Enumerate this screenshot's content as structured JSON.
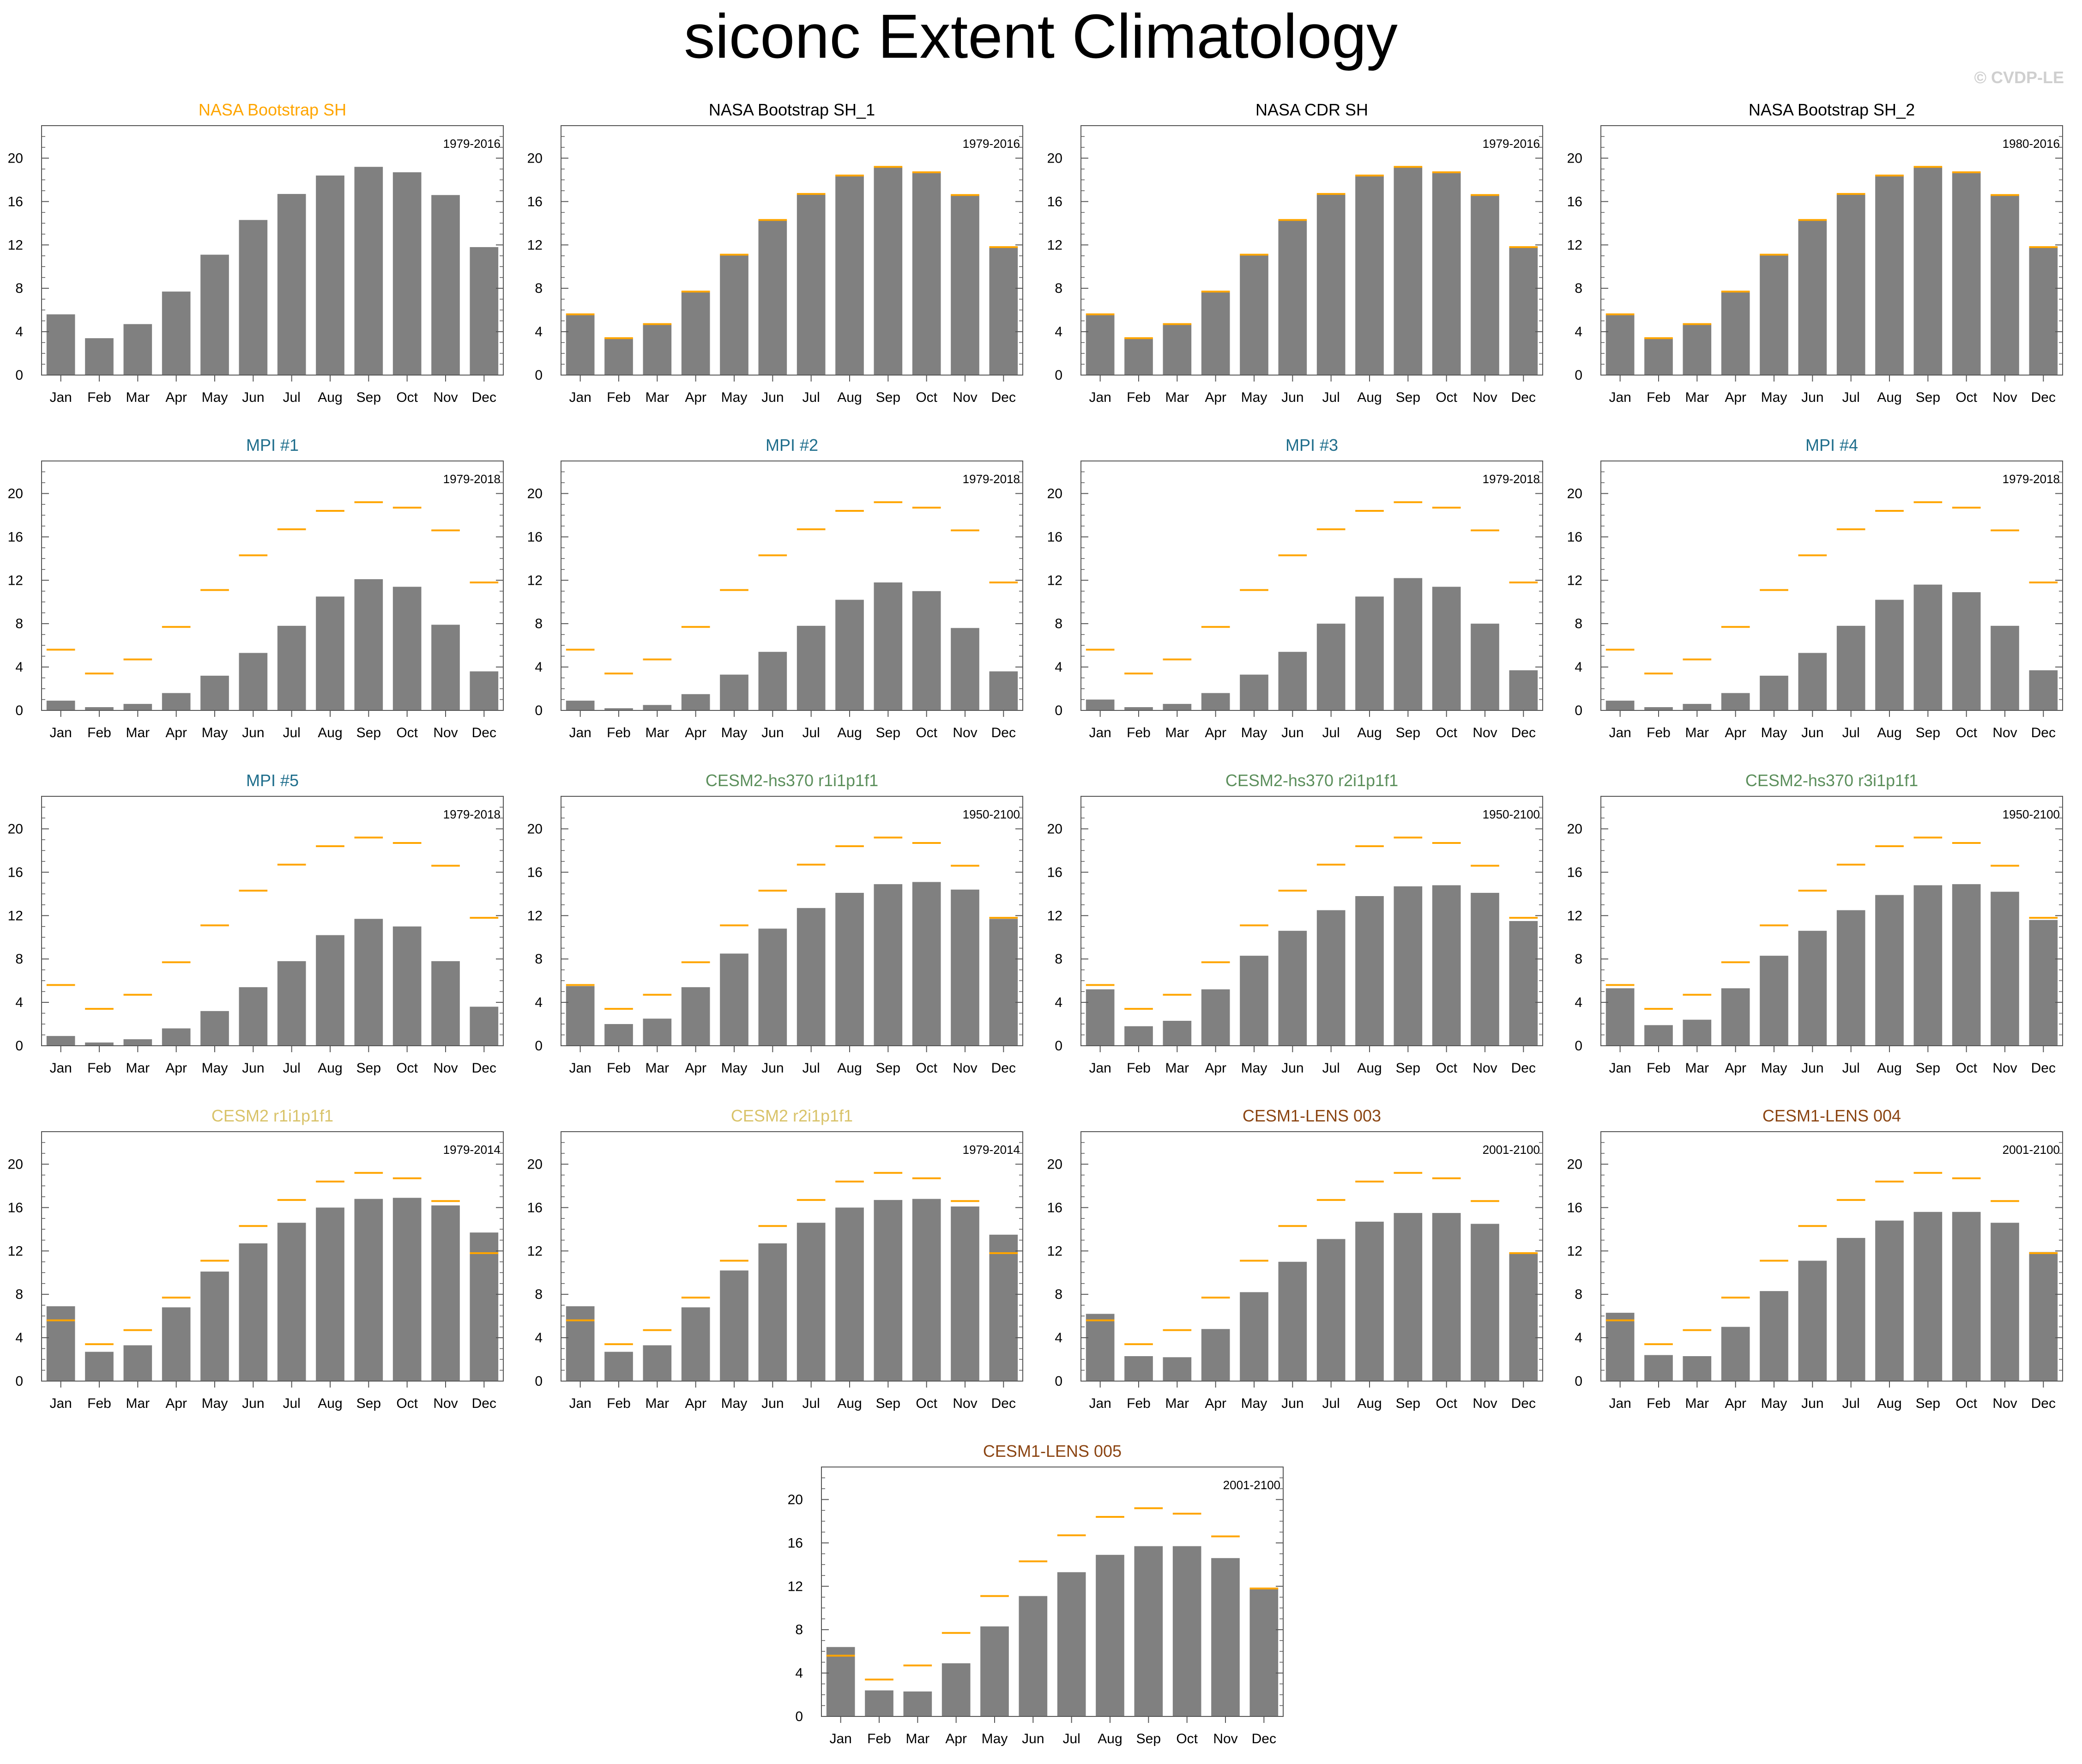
{
  "title": "siconc Extent Climatology",
  "watermark": "© CVDP-LE",
  "colors": {
    "bar": "#808080",
    "obs_line": "#FFA500",
    "title_obs": "#FFA500",
    "title_black": "#000000",
    "title_mpi": "#1F6E8C",
    "title_cesm2hs": "#5C8F5C",
    "title_cesm2": "#D9C36A",
    "title_lens": "#8B4513"
  },
  "chart_data": [
    {
      "type": "bar",
      "title": "NASA Bootstrap SH",
      "title_color": "#FFA500",
      "period": "1979-2016",
      "categories": [
        "Jan",
        "Feb",
        "Mar",
        "Apr",
        "May",
        "Jun",
        "Jul",
        "Aug",
        "Sep",
        "Oct",
        "Nov",
        "Dec"
      ],
      "values": [
        5.6,
        3.4,
        4.7,
        7.7,
        11.1,
        14.3,
        16.7,
        18.4,
        19.2,
        18.7,
        16.6,
        11.8
      ],
      "ylim": [
        0,
        23
      ],
      "yticks": [
        0,
        4,
        8,
        12,
        16,
        20
      ],
      "obs_reference": false
    },
    {
      "type": "bar",
      "title": "NASA Bootstrap SH_1",
      "title_color": "#000000",
      "period": "1979-2016",
      "categories": [
        "Jan",
        "Feb",
        "Mar",
        "Apr",
        "May",
        "Jun",
        "Jul",
        "Aug",
        "Sep",
        "Oct",
        "Nov",
        "Dec"
      ],
      "values": [
        5.6,
        3.4,
        4.7,
        7.7,
        11.1,
        14.3,
        16.7,
        18.4,
        19.2,
        18.7,
        16.6,
        11.8
      ],
      "ylim": [
        0,
        23
      ],
      "yticks": [
        0,
        4,
        8,
        12,
        16,
        20
      ],
      "obs_reference": true
    },
    {
      "type": "bar",
      "title": "NASA CDR SH",
      "title_color": "#000000",
      "period": "1979-2016",
      "categories": [
        "Jan",
        "Feb",
        "Mar",
        "Apr",
        "May",
        "Jun",
        "Jul",
        "Aug",
        "Sep",
        "Oct",
        "Nov",
        "Dec"
      ],
      "values": [
        5.6,
        3.4,
        4.7,
        7.7,
        11.1,
        14.3,
        16.7,
        18.4,
        19.2,
        18.7,
        16.6,
        11.8
      ],
      "ylim": [
        0,
        23
      ],
      "yticks": [
        0,
        4,
        8,
        12,
        16,
        20
      ],
      "obs_reference": true
    },
    {
      "type": "bar",
      "title": "NASA Bootstrap SH_2",
      "title_color": "#000000",
      "period": "1980-2016",
      "categories": [
        "Jan",
        "Feb",
        "Mar",
        "Apr",
        "May",
        "Jun",
        "Jul",
        "Aug",
        "Sep",
        "Oct",
        "Nov",
        "Dec"
      ],
      "values": [
        5.6,
        3.4,
        4.7,
        7.7,
        11.1,
        14.3,
        16.7,
        18.4,
        19.2,
        18.7,
        16.6,
        11.8
      ],
      "ylim": [
        0,
        23
      ],
      "yticks": [
        0,
        4,
        8,
        12,
        16,
        20
      ],
      "obs_reference": true
    },
    {
      "type": "bar",
      "title": "MPI #1",
      "title_color": "#1F6E8C",
      "period": "1979-2018",
      "categories": [
        "Jan",
        "Feb",
        "Mar",
        "Apr",
        "May",
        "Jun",
        "Jul",
        "Aug",
        "Sep",
        "Oct",
        "Nov",
        "Dec"
      ],
      "values": [
        0.9,
        0.3,
        0.6,
        1.6,
        3.2,
        5.3,
        7.8,
        10.5,
        12.1,
        11.4,
        7.9,
        3.6
      ],
      "ylim": [
        0,
        23
      ],
      "yticks": [
        0,
        4,
        8,
        12,
        16,
        20
      ],
      "obs_reference": true
    },
    {
      "type": "bar",
      "title": "MPI #2",
      "title_color": "#1F6E8C",
      "period": "1979-2018",
      "categories": [
        "Jan",
        "Feb",
        "Mar",
        "Apr",
        "May",
        "Jun",
        "Jul",
        "Aug",
        "Sep",
        "Oct",
        "Nov",
        "Dec"
      ],
      "values": [
        0.9,
        0.2,
        0.5,
        1.5,
        3.3,
        5.4,
        7.8,
        10.2,
        11.8,
        11.0,
        7.6,
        3.6
      ],
      "ylim": [
        0,
        23
      ],
      "yticks": [
        0,
        4,
        8,
        12,
        16,
        20
      ],
      "obs_reference": true
    },
    {
      "type": "bar",
      "title": "MPI #3",
      "title_color": "#1F6E8C",
      "period": "1979-2018",
      "categories": [
        "Jan",
        "Feb",
        "Mar",
        "Apr",
        "May",
        "Jun",
        "Jul",
        "Aug",
        "Sep",
        "Oct",
        "Nov",
        "Dec"
      ],
      "values": [
        1.0,
        0.3,
        0.6,
        1.6,
        3.3,
        5.4,
        8.0,
        10.5,
        12.2,
        11.4,
        8.0,
        3.7
      ],
      "ylim": [
        0,
        23
      ],
      "yticks": [
        0,
        4,
        8,
        12,
        16,
        20
      ],
      "obs_reference": true
    },
    {
      "type": "bar",
      "title": "MPI #4",
      "title_color": "#1F6E8C",
      "period": "1979-2018",
      "categories": [
        "Jan",
        "Feb",
        "Mar",
        "Apr",
        "May",
        "Jun",
        "Jul",
        "Aug",
        "Sep",
        "Oct",
        "Nov",
        "Dec"
      ],
      "values": [
        0.9,
        0.3,
        0.6,
        1.6,
        3.2,
        5.3,
        7.8,
        10.2,
        11.6,
        10.9,
        7.8,
        3.7
      ],
      "ylim": [
        0,
        23
      ],
      "yticks": [
        0,
        4,
        8,
        12,
        16,
        20
      ],
      "obs_reference": true
    },
    {
      "type": "bar",
      "title": "MPI #5",
      "title_color": "#1F6E8C",
      "period": "1979-2018",
      "categories": [
        "Jan",
        "Feb",
        "Mar",
        "Apr",
        "May",
        "Jun",
        "Jul",
        "Aug",
        "Sep",
        "Oct",
        "Nov",
        "Dec"
      ],
      "values": [
        0.9,
        0.3,
        0.6,
        1.6,
        3.2,
        5.4,
        7.8,
        10.2,
        11.7,
        11.0,
        7.8,
        3.6
      ],
      "ylim": [
        0,
        23
      ],
      "yticks": [
        0,
        4,
        8,
        12,
        16,
        20
      ],
      "obs_reference": true
    },
    {
      "type": "bar",
      "title": "CESM2-hs370 r1i1p1f1",
      "title_color": "#5C8F5C",
      "period": "1950-2100",
      "categories": [
        "Jan",
        "Feb",
        "Mar",
        "Apr",
        "May",
        "Jun",
        "Jul",
        "Aug",
        "Sep",
        "Oct",
        "Nov",
        "Dec"
      ],
      "values": [
        5.5,
        2.0,
        2.5,
        5.4,
        8.5,
        10.8,
        12.7,
        14.1,
        14.9,
        15.1,
        14.4,
        11.7
      ],
      "ylim": [
        0,
        23
      ],
      "yticks": [
        0,
        4,
        8,
        12,
        16,
        20
      ],
      "obs_reference": true
    },
    {
      "type": "bar",
      "title": "CESM2-hs370 r2i1p1f1",
      "title_color": "#5C8F5C",
      "period": "1950-2100",
      "categories": [
        "Jan",
        "Feb",
        "Mar",
        "Apr",
        "May",
        "Jun",
        "Jul",
        "Aug",
        "Sep",
        "Oct",
        "Nov",
        "Dec"
      ],
      "values": [
        5.2,
        1.8,
        2.3,
        5.2,
        8.3,
        10.6,
        12.5,
        13.8,
        14.7,
        14.8,
        14.1,
        11.5
      ],
      "ylim": [
        0,
        23
      ],
      "yticks": [
        0,
        4,
        8,
        12,
        16,
        20
      ],
      "obs_reference": true
    },
    {
      "type": "bar",
      "title": "CESM2-hs370 r3i1p1f1",
      "title_color": "#5C8F5C",
      "period": "1950-2100",
      "categories": [
        "Jan",
        "Feb",
        "Mar",
        "Apr",
        "May",
        "Jun",
        "Jul",
        "Aug",
        "Sep",
        "Oct",
        "Nov",
        "Dec"
      ],
      "values": [
        5.3,
        1.9,
        2.4,
        5.3,
        8.3,
        10.6,
        12.5,
        13.9,
        14.8,
        14.9,
        14.2,
        11.6
      ],
      "ylim": [
        0,
        23
      ],
      "yticks": [
        0,
        4,
        8,
        12,
        16,
        20
      ],
      "obs_reference": true
    },
    {
      "type": "bar",
      "title": "CESM2 r1i1p1f1",
      "title_color": "#D9C36A",
      "period": "1979-2014",
      "categories": [
        "Jan",
        "Feb",
        "Mar",
        "Apr",
        "May",
        "Jun",
        "Jul",
        "Aug",
        "Sep",
        "Oct",
        "Nov",
        "Dec"
      ],
      "values": [
        6.9,
        2.7,
        3.3,
        6.8,
        10.1,
        12.7,
        14.6,
        16.0,
        16.8,
        16.9,
        16.2,
        13.7
      ],
      "ylim": [
        0,
        23
      ],
      "yticks": [
        0,
        4,
        8,
        12,
        16,
        20
      ],
      "obs_reference": true
    },
    {
      "type": "bar",
      "title": "CESM2 r2i1p1f1",
      "title_color": "#D9C36A",
      "period": "1979-2014",
      "categories": [
        "Jan",
        "Feb",
        "Mar",
        "Apr",
        "May",
        "Jun",
        "Jul",
        "Aug",
        "Sep",
        "Oct",
        "Nov",
        "Dec"
      ],
      "values": [
        6.9,
        2.7,
        3.3,
        6.8,
        10.2,
        12.7,
        14.6,
        16.0,
        16.7,
        16.8,
        16.1,
        13.5
      ],
      "ylim": [
        0,
        23
      ],
      "yticks": [
        0,
        4,
        8,
        12,
        16,
        20
      ],
      "obs_reference": true
    },
    {
      "type": "bar",
      "title": "CESM1-LENS 003",
      "title_color": "#8B4513",
      "period": "2001-2100",
      "categories": [
        "Jan",
        "Feb",
        "Mar",
        "Apr",
        "May",
        "Jun",
        "Jul",
        "Aug",
        "Sep",
        "Oct",
        "Nov",
        "Dec"
      ],
      "values": [
        6.2,
        2.3,
        2.2,
        4.8,
        8.2,
        11.0,
        13.1,
        14.7,
        15.5,
        15.5,
        14.5,
        11.8
      ],
      "ylim": [
        0,
        23
      ],
      "yticks": [
        0,
        4,
        8,
        12,
        16,
        20
      ],
      "obs_reference": true
    },
    {
      "type": "bar",
      "title": "CESM1-LENS 004",
      "title_color": "#8B4513",
      "period": "2001-2100",
      "categories": [
        "Jan",
        "Feb",
        "Mar",
        "Apr",
        "May",
        "Jun",
        "Jul",
        "Aug",
        "Sep",
        "Oct",
        "Nov",
        "Dec"
      ],
      "values": [
        6.3,
        2.4,
        2.3,
        5.0,
        8.3,
        11.1,
        13.2,
        14.8,
        15.6,
        15.6,
        14.6,
        11.9
      ],
      "ylim": [
        0,
        23
      ],
      "yticks": [
        0,
        4,
        8,
        12,
        16,
        20
      ],
      "obs_reference": true
    },
    {
      "type": "bar",
      "title": "CESM1-LENS 005",
      "title_color": "#8B4513",
      "period": "2001-2100",
      "categories": [
        "Jan",
        "Feb",
        "Mar",
        "Apr",
        "May",
        "Jun",
        "Jul",
        "Aug",
        "Sep",
        "Oct",
        "Nov",
        "Dec"
      ],
      "values": [
        6.4,
        2.4,
        2.3,
        4.9,
        8.3,
        11.1,
        13.3,
        14.9,
        15.7,
        15.7,
        14.6,
        11.8
      ],
      "ylim": [
        0,
        23
      ],
      "yticks": [
        0,
        4,
        8,
        12,
        16,
        20
      ],
      "obs_reference": true
    }
  ],
  "obs_reference_values": [
    5.6,
    3.4,
    4.7,
    7.7,
    11.1,
    14.3,
    16.7,
    18.4,
    19.2,
    18.7,
    16.6,
    11.8
  ]
}
